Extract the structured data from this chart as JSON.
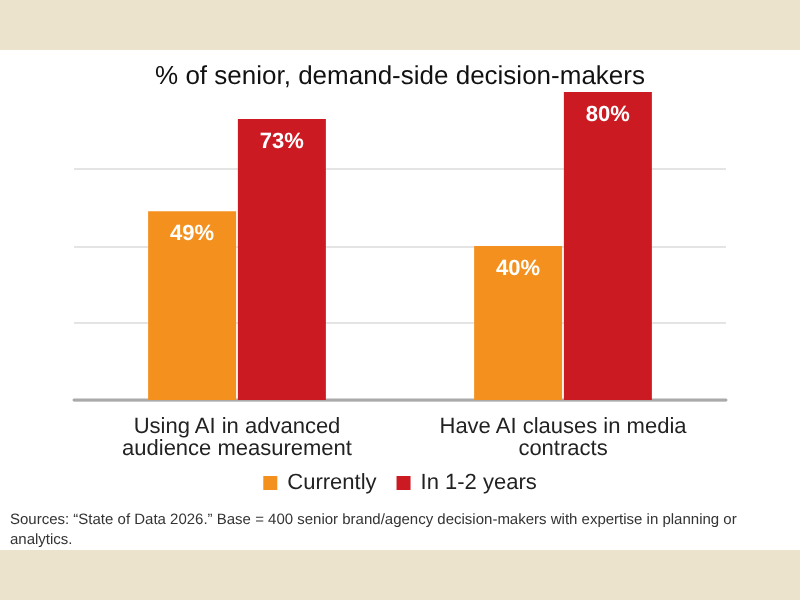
{
  "chart_data": {
    "type": "bar",
    "title": "% of senior, demand-side decision-makers",
    "categories": [
      "Using AI in advanced audience measurement",
      "Have AI clauses in media contracts"
    ],
    "series": [
      {
        "name": "Currently",
        "color": "#f4901e",
        "values": [
          49,
          40
        ],
        "value_labels": [
          "49%",
          "40%"
        ]
      },
      {
        "name": "In 1-2 years",
        "color": "#cc1a22",
        "values": [
          73,
          80
        ],
        "value_labels": [
          "73%",
          "80%"
        ]
      }
    ],
    "ylim": [
      0,
      80
    ],
    "yticks": [
      0,
      20,
      40,
      60
    ],
    "grid": "y",
    "tick_labels": "x",
    "legend": "bottom",
    "annotations": [
      "Sources: “State of Data 2026.” Base = 400 senior brand/agency decision-makers with expertise in planning or analytics."
    ]
  }
}
